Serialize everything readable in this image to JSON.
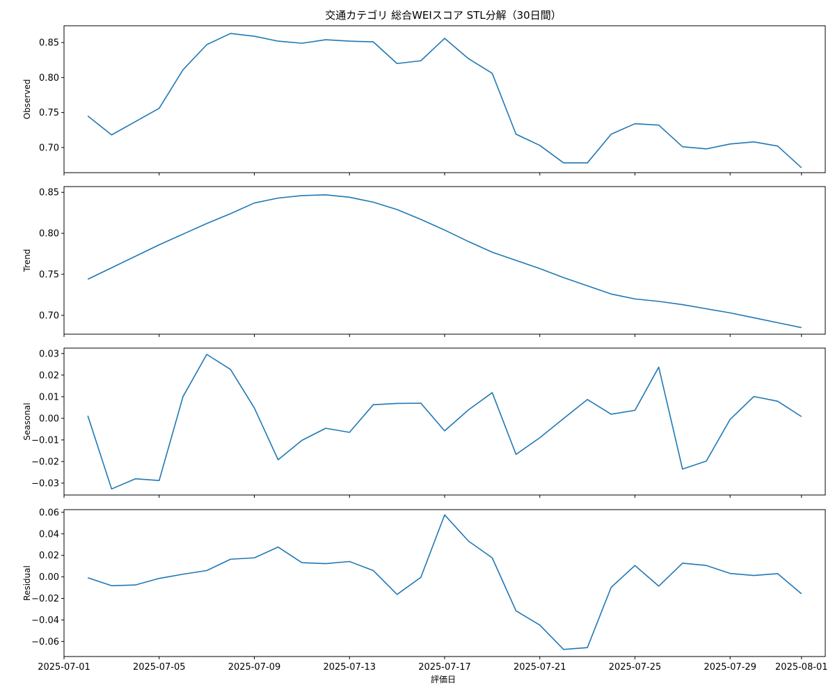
{
  "chart_data": {
    "type": "line",
    "title": "交通カテゴリ 総合WEIスコア STL分解（30日間）",
    "xlabel": "評価日",
    "x_ticks": [
      "2025-07-01",
      "2025-07-05",
      "2025-07-09",
      "2025-07-13",
      "2025-07-17",
      "2025-07-21",
      "2025-07-25",
      "2025-07-29",
      "2025-08-01"
    ],
    "dates": [
      "2025-07-02",
      "2025-07-03",
      "2025-07-04",
      "2025-07-05",
      "2025-07-06",
      "2025-07-07",
      "2025-07-08",
      "2025-07-09",
      "2025-07-10",
      "2025-07-11",
      "2025-07-12",
      "2025-07-13",
      "2025-07-14",
      "2025-07-15",
      "2025-07-16",
      "2025-07-17",
      "2025-07-18",
      "2025-07-19",
      "2025-07-20",
      "2025-07-21",
      "2025-07-22",
      "2025-07-23",
      "2025-07-24",
      "2025-07-25",
      "2025-07-26",
      "2025-07-27",
      "2025-07-28",
      "2025-07-29",
      "2025-07-30",
      "2025-07-31",
      "2025-08-01"
    ],
    "xlim": [
      "2025-07-01",
      "2025-08-02"
    ],
    "grid": false,
    "line_color": "#1f77b4",
    "panels": [
      {
        "name": "Observed",
        "ylabel": "Observed",
        "ylim": [
          0.664,
          0.874
        ],
        "y_ticks": [
          "0.70",
          "0.75",
          "0.80",
          "0.85"
        ],
        "values": [
          0.745,
          0.718,
          0.737,
          0.756,
          0.811,
          0.847,
          0.863,
          0.859,
          0.852,
          0.849,
          0.854,
          0.852,
          0.851,
          0.82,
          0.824,
          0.856,
          0.827,
          0.806,
          0.719,
          0.703,
          0.678,
          0.678,
          0.719,
          0.734,
          0.732,
          0.701,
          0.698,
          0.705,
          0.708,
          0.702,
          0.671
        ]
      },
      {
        "name": "Trend",
        "ylabel": "Trend",
        "ylim": [
          0.677,
          0.857
        ],
        "y_ticks": [
          "0.70",
          "0.75",
          "0.80",
          "0.85"
        ],
        "values": [
          0.744,
          0.758,
          0.772,
          0.786,
          0.799,
          0.812,
          0.824,
          0.837,
          0.843,
          0.846,
          0.847,
          0.844,
          0.838,
          0.829,
          0.817,
          0.804,
          0.79,
          0.777,
          0.767,
          0.757,
          0.746,
          0.736,
          0.726,
          0.72,
          0.717,
          0.713,
          0.708,
          0.703,
          0.697,
          0.691,
          0.685
        ]
      },
      {
        "name": "Seasonal",
        "ylabel": "Seasonal",
        "ylim": [
          -0.0355,
          0.0325
        ],
        "y_ticks": [
          "−0.03",
          "−0.02",
          "−0.01",
          "0.00",
          "0.01",
          "0.02",
          "0.03"
        ],
        "values": [
          0.0012,
          -0.0327,
          -0.028,
          -0.0288,
          0.01,
          0.0296,
          0.0226,
          0.0048,
          -0.0192,
          -0.0102,
          -0.0046,
          -0.0065,
          0.0063,
          0.0069,
          0.007,
          -0.0058,
          0.0039,
          0.0119,
          -0.0167,
          -0.009,
          -0.0001,
          0.0087,
          0.0019,
          0.0037,
          0.0237,
          -0.0235,
          -0.0198,
          -0.0005,
          0.0101,
          0.0079,
          0.0008
        ]
      },
      {
        "name": "Residual",
        "ylabel": "Residual",
        "ylim": [
          -0.074,
          0.0625
        ],
        "y_ticks": [
          "−0.06",
          "−0.04",
          "−0.02",
          "0.00",
          "0.02",
          "0.04",
          "0.06"
        ],
        "values": [
          -0.0008,
          -0.0082,
          -0.0075,
          -0.0014,
          0.0025,
          0.0059,
          0.0164,
          0.0177,
          0.0277,
          0.0132,
          0.0123,
          0.0143,
          0.0059,
          -0.0163,
          -0.0004,
          0.0576,
          0.0333,
          0.0177,
          -0.0315,
          -0.0448,
          -0.0674,
          -0.0657,
          -0.0097,
          0.0106,
          -0.0086,
          0.0127,
          0.0106,
          0.0032,
          0.0013,
          0.003,
          -0.0157
        ]
      }
    ]
  }
}
